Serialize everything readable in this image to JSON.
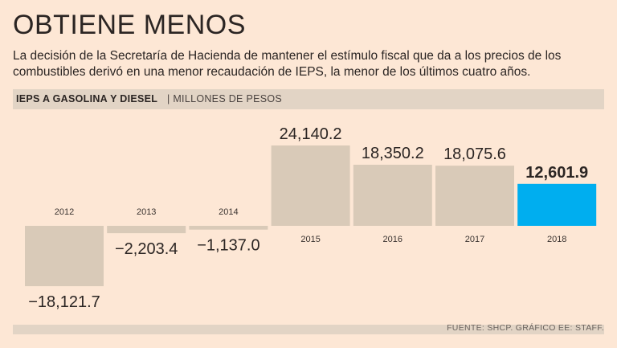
{
  "header": {
    "title": "OBTIENE MENOS",
    "subtitle": "La decisión de la Secretaría de Hacienda de mantener el estímulo fiscal que da a los precios de los combustibles derivó en una menor recaudación de IEPS, la menor de los últimos cuatro años."
  },
  "chart_label": {
    "series_name": "IEPS A GASOLINA Y DIESEL",
    "separator": "|",
    "unit": "MILLONES DE PESOS"
  },
  "footer": {
    "source": "FUENTE: SHCP. GRÁFICO EE: STAFF."
  },
  "colors": {
    "bar": "#d9cab8",
    "highlight": "#00aeef",
    "background": "#fde7d5",
    "band": "#e2d4c5"
  },
  "chart_data": {
    "type": "bar",
    "title": "IEPS A GASOLINA Y DIESEL",
    "ylabel": "MILLONES DE PESOS",
    "xlabel": "",
    "categories": [
      "2012",
      "2013",
      "2014",
      "2015",
      "2016",
      "2017",
      "2018"
    ],
    "values": [
      -18121.7,
      -2203.4,
      -1137.0,
      24140.2,
      18350.2,
      18075.6,
      12601.9
    ],
    "value_labels": [
      "−18,121.7",
      "−2,203.4",
      "−1,137.0",
      "24,140.2",
      "18,350.2",
      "18,075.6",
      "12,601.9"
    ],
    "highlight_index": 6,
    "ylim": [
      -18121.7,
      24140.2
    ],
    "grid": false,
    "legend": "none"
  }
}
